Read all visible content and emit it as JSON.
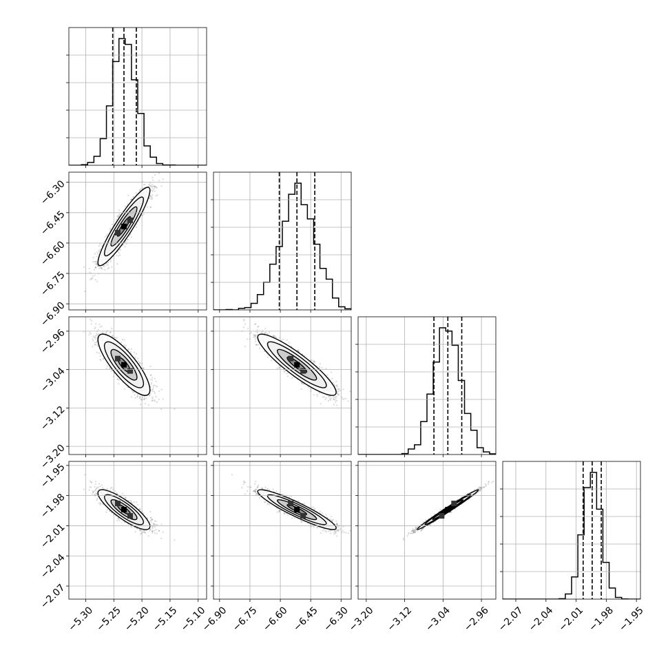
{
  "chart_data": {
    "type": "corner",
    "parameters": [
      {
        "median": -5.232,
        "q16": -5.252,
        "q84": -5.21,
        "sigma": 0.021,
        "range": [
          -5.33,
          -5.085
        ],
        "ticks": [
          -5.3,
          -5.25,
          -5.2,
          -5.15,
          -5.1
        ],
        "tick_labels": [
          "−5.30",
          "−5.25",
          "−5.20",
          "−5.15",
          "−5.10"
        ]
      },
      {
        "median": -6.518,
        "q16": -6.605,
        "q84": -6.43,
        "sigma": 0.088,
        "range": [
          -6.93,
          -6.25
        ],
        "ticks": [
          -6.9,
          -6.75,
          -6.6,
          -6.45,
          -6.3
        ],
        "tick_labels": [
          "−6.90",
          "−6.75",
          "−6.60",
          "−6.45",
          "−6.30"
        ]
      },
      {
        "median": -3.03,
        "q16": -3.059,
        "q84": -3.001,
        "sigma": 0.029,
        "range": [
          -3.217,
          -2.93
        ],
        "ticks": [
          -3.2,
          -3.12,
          -3.04,
          -2.96
        ],
        "tick_labels": [
          "−3.20",
          "−3.12",
          "−3.04",
          "−2.96"
        ]
      },
      {
        "median": -1.994,
        "q16": -2.003,
        "q84": -1.985,
        "sigma": 0.009,
        "range": [
          -2.083,
          -1.946
        ],
        "ticks": [
          -2.07,
          -2.04,
          -2.01,
          -1.98,
          -1.95
        ],
        "tick_labels": [
          "−2.07",
          "−2.04",
          "−2.01",
          "−1.98",
          "−1.95"
        ]
      }
    ],
    "correlations": [
      [
        1.0,
        0.92,
        -0.82,
        -0.84
      ],
      [
        0.92,
        1.0,
        -0.9,
        -0.92
      ],
      [
        -0.82,
        -0.9,
        1.0,
        0.99
      ],
      [
        -0.84,
        -0.92,
        0.99,
        1.0
      ]
    ],
    "quantiles_shown": [
      0.16,
      0.5,
      0.84
    ],
    "contour_levels_sigma": [
      0.5,
      1.0,
      1.5,
      2.0
    ],
    "grid": true
  }
}
